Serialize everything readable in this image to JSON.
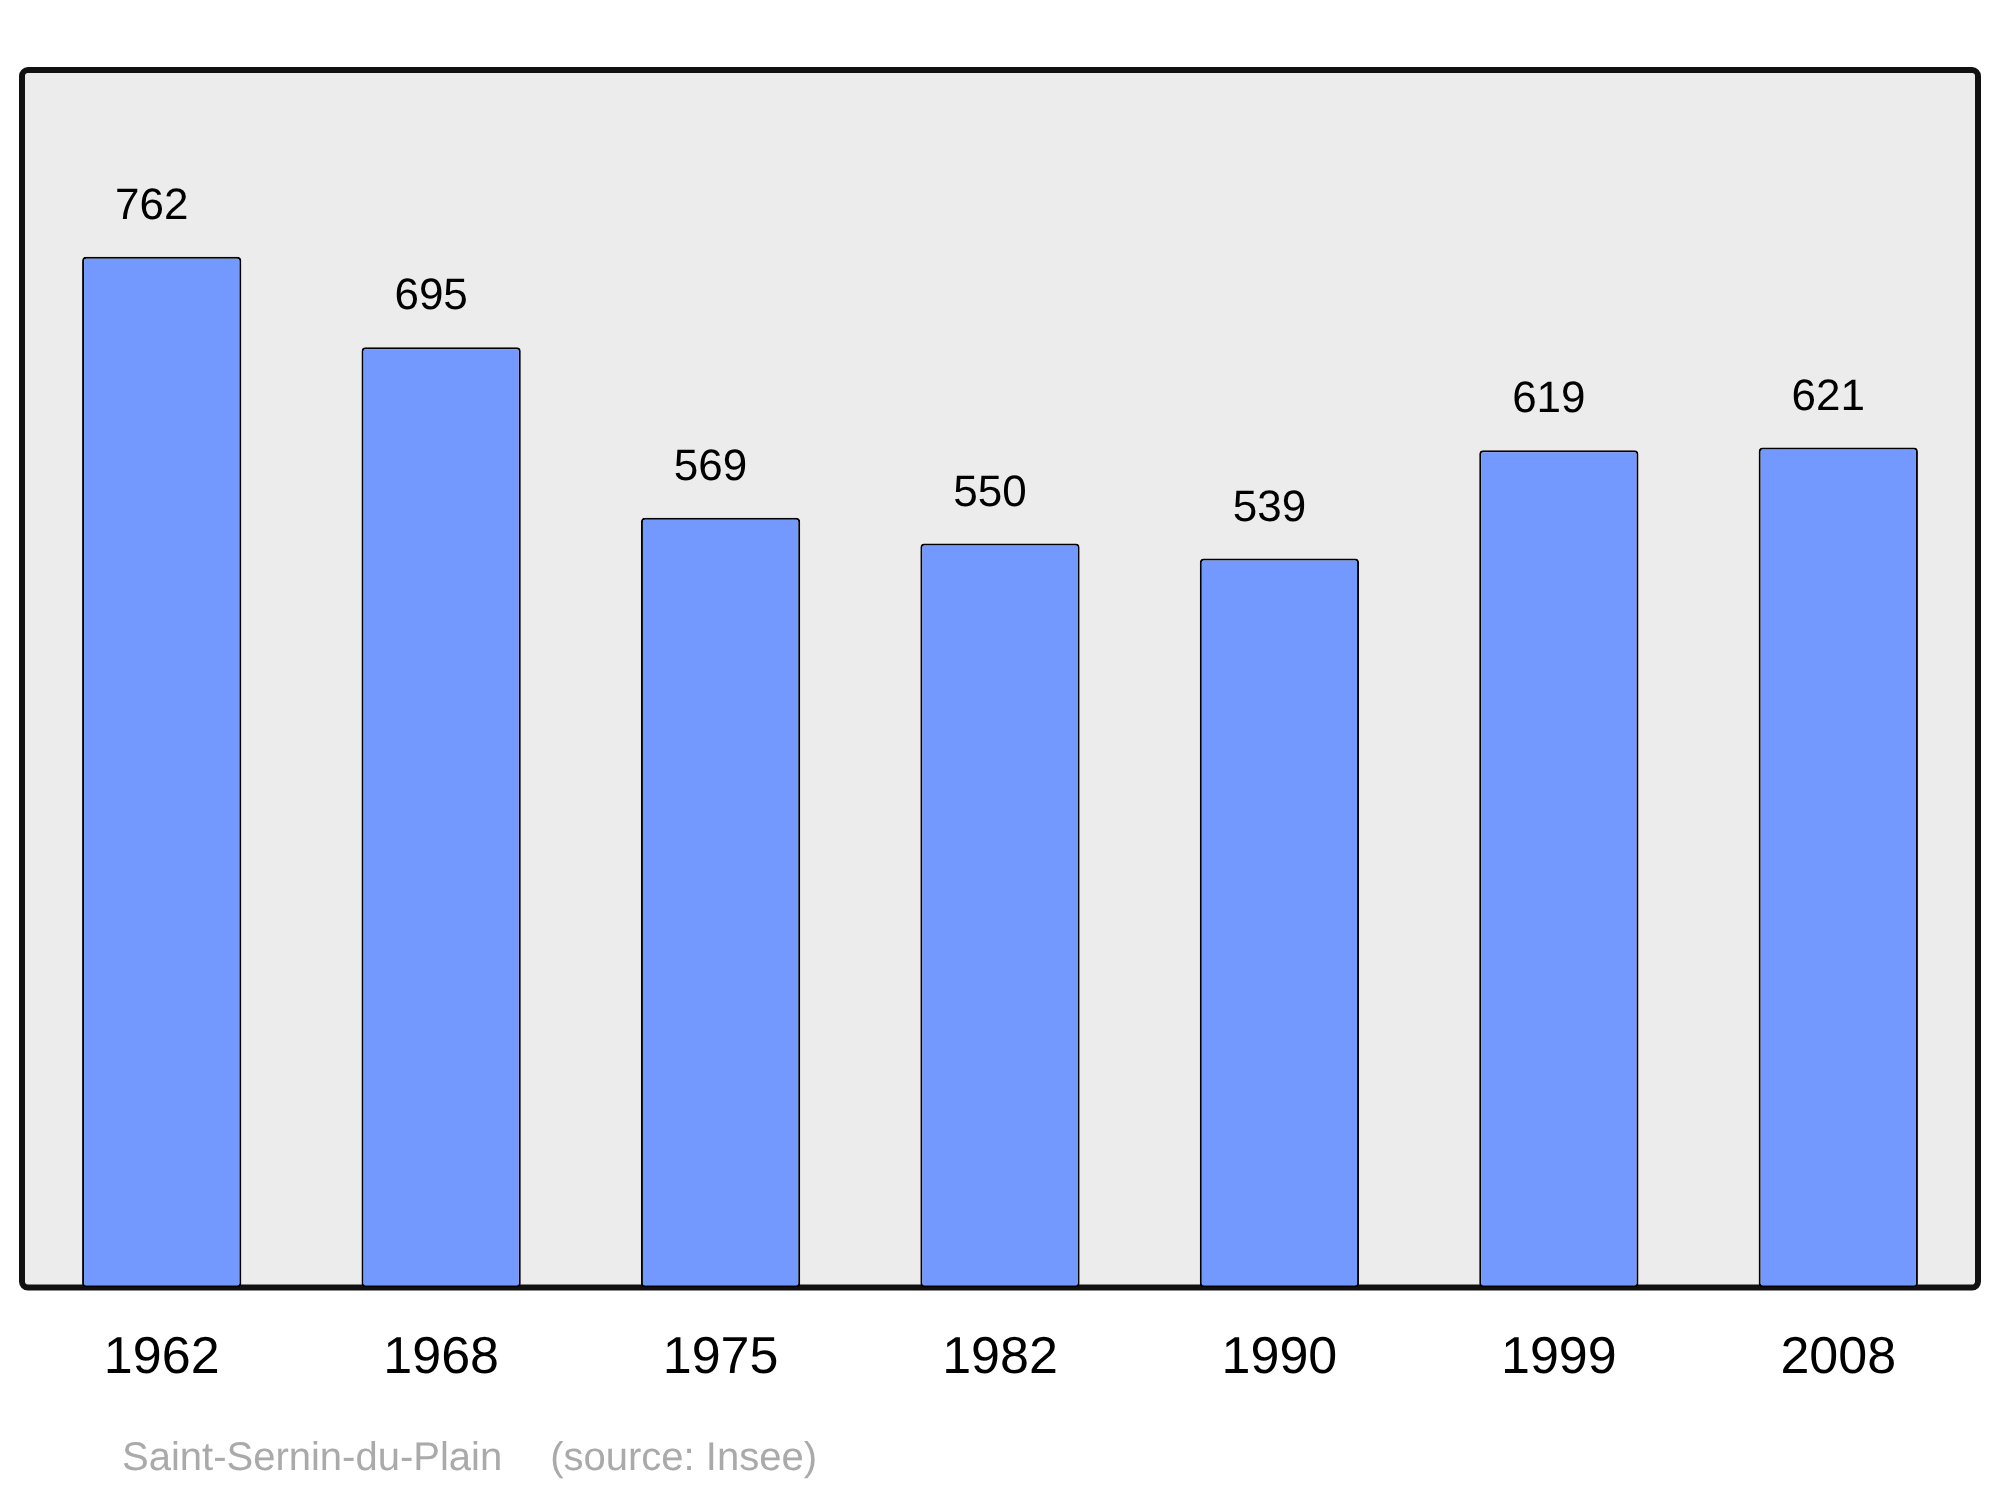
{
  "chart_data": {
    "type": "bar",
    "categories": [
      "1962",
      "1968",
      "1975",
      "1982",
      "1990",
      "1999",
      "2008"
    ],
    "values": [
      762,
      695,
      569,
      550,
      539,
      619,
      621
    ],
    "color": "#7399ff",
    "data_labels": true,
    "grid": false,
    "legend": false,
    "tick_labels": "x",
    "annotations": [
      "Saint-Sernin-du-Plain",
      "(source: Insee)"
    ]
  }
}
